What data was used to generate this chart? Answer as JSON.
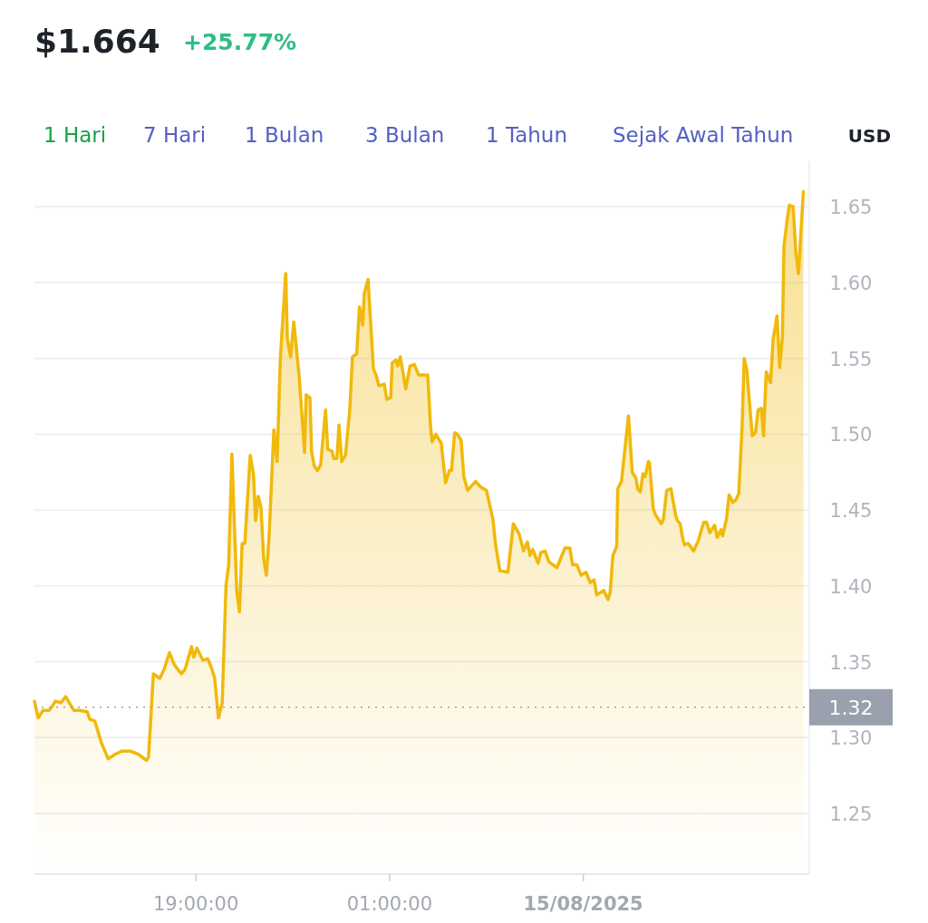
{
  "chart_data": {
    "type": "area",
    "title": "$1.664",
    "subtitle": "+25.77%",
    "annotations": [
      "1 Hari",
      "7 Hari",
      "1 Bulan",
      "3 Bulan",
      "1 Tahun",
      "Sejak Awal Tahun",
      "USD"
    ],
    "x": [
      "2025-08-14T14:00",
      "2025-08-14T14:07",
      "2025-08-14T14:16",
      "2025-08-14T14:28",
      "2025-08-14T14:39",
      "2025-08-14T14:49",
      "2025-08-14T14:58",
      "2025-08-14T15:13",
      "2025-08-14T15:23",
      "2025-08-14T15:38",
      "2025-08-14T15:43",
      "2025-08-14T15:52",
      "2025-08-14T16:04",
      "2025-08-14T16:17",
      "2025-08-14T16:30",
      "2025-08-14T16:42",
      "2025-08-14T16:59",
      "2025-08-14T17:13",
      "2025-08-14T17:28",
      "2025-08-14T17:32",
      "2025-08-14T17:41",
      "2025-08-14T17:53",
      "2025-08-14T18:01",
      "2025-08-14T18:11",
      "2025-08-14T18:20",
      "2025-08-14T18:33",
      "2025-08-14T18:40",
      "2025-08-14T18:52",
      "2025-08-14T18:56",
      "2025-08-14T19:02",
      "2025-08-14T19:13",
      "2025-08-14T19:22",
      "2025-08-14T19:30",
      "2025-08-14T19:35",
      "2025-08-14T19:42",
      "2025-08-14T19:49",
      "2025-08-14T19:56",
      "2025-08-14T20:01",
      "2025-08-14T20:07",
      "2025-08-14T20:16",
      "2025-08-14T20:21",
      "2025-08-14T20:26",
      "2025-08-14T20:31",
      "2025-08-14T20:41",
      "2025-08-14T20:47",
      "2025-08-14T20:51",
      "2025-08-14T20:56",
      "2025-08-14T21:01",
      "2025-08-14T21:06",
      "2025-08-14T21:11",
      "2025-08-14T21:16",
      "2025-08-14T21:25",
      "2025-08-14T21:31",
      "2025-08-14T21:37",
      "2025-08-14T21:47",
      "2025-08-14T21:50",
      "2025-08-14T21:56",
      "2025-08-14T22:02",
      "2025-08-14T22:12",
      "2025-08-14T22:22",
      "2025-08-14T22:25",
      "2025-08-14T22:32",
      "2025-08-14T22:35",
      "2025-08-14T22:40",
      "2025-08-14T22:46",
      "2025-08-14T22:52",
      "2025-08-14T23:01",
      "2025-08-14T23:05",
      "2025-08-14T23:13",
      "2025-08-14T23:16",
      "2025-08-14T23:22",
      "2025-08-14T23:26",
      "2025-08-14T23:31",
      "2025-08-14T23:38",
      "2025-08-14T23:46",
      "2025-08-14T23:51",
      "2025-08-14T23:59",
      "2025-08-15T00:04",
      "2025-08-15T00:10",
      "2025-08-15T00:13",
      "2025-08-15T00:20",
      "2025-08-15T00:30",
      "2025-08-15T00:35",
      "2025-08-15T00:40",
      "2025-08-15T00:50",
      "2025-08-15T00:55",
      "2025-08-15T01:02",
      "2025-08-15T01:05",
      "2025-08-15T01:12",
      "2025-08-15T01:15",
      "2025-08-15T01:20",
      "2025-08-15T01:30",
      "2025-08-15T01:38",
      "2025-08-15T01:46",
      "2025-08-15T01:54",
      "2025-08-15T02:02",
      "2025-08-15T02:11",
      "2025-08-15T02:16",
      "2025-08-15T02:19",
      "2025-08-15T02:26",
      "2025-08-15T02:36",
      "2025-08-15T02:44",
      "2025-08-15T02:51",
      "2025-08-15T02:55",
      "2025-08-15T03:01",
      "2025-08-15T03:06",
      "2025-08-15T03:13",
      "2025-08-15T03:18",
      "2025-08-15T03:25",
      "2025-08-15T03:40",
      "2025-08-15T03:47",
      "2025-08-15T03:50",
      "2025-08-15T04:00",
      "2025-08-15T04:12",
      "2025-08-15T04:17",
      "2025-08-15T04:25",
      "2025-08-15T04:40",
      "2025-08-15T04:50",
      "2025-08-15T05:01",
      "2025-08-15T05:09",
      "2025-08-15T05:16",
      "2025-08-15T05:21",
      "2025-08-15T05:26",
      "2025-08-15T05:36",
      "2025-08-15T05:41",
      "2025-08-15T05:49",
      "2025-08-15T05:56",
      "2025-08-15T06:11",
      "2025-08-15T06:26",
      "2025-08-15T06:35",
      "2025-08-15T06:40",
      "2025-08-15T06:48",
      "2025-08-15T06:56",
      "2025-08-15T07:05",
      "2025-08-15T07:13",
      "2025-08-15T07:20",
      "2025-08-15T07:25",
      "2025-08-15T07:38",
      "2025-08-15T07:46",
      "2025-08-15T07:50",
      "2025-08-15T07:55",
      "2025-08-15T08:02",
      "2025-08-15T08:04",
      "2025-08-15T08:11",
      "2025-08-15T08:24",
      "2025-08-15T08:31",
      "2025-08-15T08:38",
      "2025-08-15T08:41",
      "2025-08-15T08:46",
      "2025-08-15T08:51",
      "2025-08-15T08:55",
      "2025-08-15T09:01",
      "2025-08-15T09:03",
      "2025-08-15T09:10",
      "2025-08-15T09:14",
      "2025-08-15T09:25",
      "2025-08-15T09:29",
      "2025-08-15T09:35",
      "2025-08-15T09:43",
      "2025-08-15T09:52",
      "2025-08-15T09:55",
      "2025-08-15T10:00",
      "2025-08-15T10:05",
      "2025-08-15T10:08",
      "2025-08-15T10:15",
      "2025-08-15T10:25",
      "2025-08-15T10:34",
      "2025-08-15T10:38",
      "2025-08-15T10:44",
      "2025-08-15T10:49",
      "2025-08-15T10:55",
      "2025-08-15T11:04",
      "2025-08-15T11:09",
      "2025-08-15T11:16",
      "2025-08-15T11:19",
      "2025-08-15T11:26",
      "2025-08-15T11:31",
      "2025-08-15T11:38",
      "2025-08-15T11:44",
      "2025-08-15T11:49",
      "2025-08-15T11:55",
      "2025-08-15T11:59",
      "2025-08-15T12:04",
      "2025-08-15T12:14",
      "2025-08-15T12:20",
      "2025-08-15T12:25",
      "2025-08-15T12:31",
      "2025-08-15T12:35",
      "2025-08-15T12:40",
      "2025-08-15T12:48",
      "2025-08-15T12:53",
      "2025-08-15T13:00",
      "2025-08-15T13:05",
      "2025-08-15T13:10",
      "2025-08-15T13:13",
      "2025-08-15T13:19",
      "2025-08-15T13:23",
      "2025-08-15T13:30",
      "2025-08-15T13:35",
      "2025-08-15T13:40",
      "2025-08-15T13:49"
    ],
    "series": [
      {
        "color": "#f0b90b",
        "values": [
          1.324,
          1.313,
          1.318,
          1.318,
          1.324,
          1.323,
          1.327,
          1.318,
          1.318,
          1.317,
          1.312,
          1.311,
          1.297,
          1.286,
          1.289,
          1.291,
          1.291,
          1.289,
          1.285,
          1.287,
          1.342,
          1.339,
          1.345,
          1.356,
          1.348,
          1.342,
          1.345,
          1.36,
          1.353,
          1.359,
          1.351,
          1.352,
          1.345,
          1.339,
          1.313,
          1.323,
          1.4,
          1.414,
          1.487,
          1.396,
          1.383,
          1.428,
          1.428,
          1.486,
          1.474,
          1.443,
          1.459,
          1.452,
          1.418,
          1.407,
          1.432,
          1.503,
          1.482,
          1.55,
          1.606,
          1.563,
          1.551,
          1.574,
          1.538,
          1.488,
          1.526,
          1.524,
          1.489,
          1.479,
          1.476,
          1.48,
          1.516,
          1.49,
          1.489,
          1.484,
          1.484,
          1.506,
          1.482,
          1.486,
          1.516,
          1.551,
          1.553,
          1.584,
          1.572,
          1.593,
          1.602,
          1.543,
          1.539,
          1.532,
          1.533,
          1.523,
          1.524,
          1.547,
          1.549,
          1.545,
          1.551,
          1.53,
          1.545,
          1.546,
          1.539,
          1.539,
          1.539,
          1.506,
          1.495,
          1.5,
          1.494,
          1.468,
          1.476,
          1.476,
          1.501,
          1.5,
          1.496,
          1.472,
          1.463,
          1.469,
          1.466,
          1.465,
          1.463,
          1.444,
          1.427,
          1.41,
          1.409,
          1.441,
          1.434,
          1.423,
          1.429,
          1.42,
          1.424,
          1.415,
          1.422,
          1.423,
          1.416,
          1.412,
          1.425,
          1.425,
          1.414,
          1.414,
          1.407,
          1.409,
          1.402,
          1.404,
          1.394,
          1.397,
          1.391,
          1.396,
          1.42,
          1.426,
          1.464,
          1.469,
          1.512,
          1.475,
          1.471,
          1.464,
          1.462,
          1.474,
          1.472,
          1.482,
          1.481,
          1.451,
          1.447,
          1.441,
          1.444,
          1.463,
          1.464,
          1.446,
          1.443,
          1.441,
          1.431,
          1.427,
          1.428,
          1.423,
          1.43,
          1.435,
          1.442,
          1.442,
          1.435,
          1.44,
          1.432,
          1.437,
          1.433,
          1.444,
          1.46,
          1.455,
          1.457,
          1.461,
          1.504,
          1.55,
          1.542,
          1.499,
          1.501,
          1.516,
          1.517,
          1.499,
          1.541,
          1.534,
          1.563,
          1.578,
          1.544,
          1.564,
          1.624,
          1.642,
          1.651,
          1.65,
          1.62,
          1.606,
          1.66
        ]
      }
    ],
    "xlim": [
      "2025-08-14T14:00",
      "2025-08-15T14:00"
    ],
    "xticks": [
      {
        "value": "2025-08-14T19:00",
        "label": "19:00:00"
      },
      {
        "value": "2025-08-15T01:00",
        "label": "01:00:00"
      },
      {
        "value": "2025-08-15T07:00",
        "label": "15/08/2025"
      }
    ],
    "ylim": [
      1.21,
      1.68
    ],
    "yticks": [
      {
        "value": 1.25,
        "label": "1.25"
      },
      {
        "value": 1.3,
        "label": "1.30"
      },
      {
        "value": 1.35,
        "label": "1.35"
      },
      {
        "value": 1.4,
        "label": "1.40"
      },
      {
        "value": 1.45,
        "label": "1.45"
      },
      {
        "value": 1.5,
        "label": "1.50"
      },
      {
        "value": 1.55,
        "label": "1.55"
      },
      {
        "value": 1.6,
        "label": "1.60"
      },
      {
        "value": 1.65,
        "label": "1.65"
      }
    ],
    "grid": "y",
    "line_style": "solid",
    "ref_lines": [
      {
        "axis": "y",
        "value": 1.32,
        "label": "1.32",
        "color": "#9aa0ad",
        "line_style": "dotted"
      }
    ]
  }
}
